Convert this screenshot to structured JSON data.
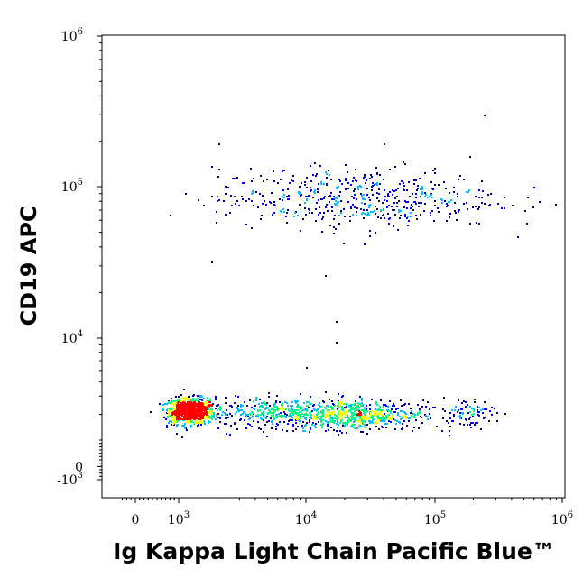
{
  "chart_data": {
    "type": "scatter",
    "title": "",
    "xlabel": "Ig Kappa Light Chain Pacific Blue™",
    "ylabel": "CD19 APC",
    "x_scale": "biexponential",
    "y_scale": "biexponential",
    "xlim": [
      -300,
      1000000
    ],
    "ylim": [
      -1000,
      1000000
    ],
    "grid": false,
    "colormap": [
      "#00008b",
      "#0000ff",
      "#00bfff",
      "#00ff80",
      "#ffff00",
      "#ff0000"
    ],
    "x_ticks": [
      {
        "value": 0,
        "base": "0",
        "exp": ""
      },
      {
        "value": 1000,
        "base": "10",
        "exp": "3"
      },
      {
        "value": 10000,
        "base": "10",
        "exp": "4"
      },
      {
        "value": 100000,
        "base": "10",
        "exp": "5"
      },
      {
        "value": 1000000,
        "base": "10",
        "exp": "6"
      }
    ],
    "y_ticks": [
      {
        "value": -1000,
        "base": "-10",
        "exp": "3"
      },
      {
        "value": 0,
        "base": "0",
        "exp": ""
      },
      {
        "value": 10000,
        "base": "10",
        "exp": "4"
      },
      {
        "value": 100000,
        "base": "10",
        "exp": "5"
      },
      {
        "value": 1000000,
        "base": "10",
        "exp": "6"
      }
    ],
    "populations": [
      {
        "center": [
          1200,
          3200
        ],
        "spread_log": [
          0.1,
          0.045
        ],
        "count": 900
      },
      {
        "center": [
          7000,
          3100
        ],
        "spread_log": [
          0.35,
          0.05
        ],
        "count": 450
      },
      {
        "center": [
          25000,
          3000
        ],
        "spread_log": [
          0.25,
          0.05
        ],
        "count": 550
      },
      {
        "center": [
          170000,
          3100
        ],
        "spread_log": [
          0.12,
          0.05
        ],
        "count": 90
      },
      {
        "center": [
          25000,
          85000
        ],
        "spread_log": [
          0.55,
          0.1
        ],
        "count": 520
      }
    ],
    "outliers": [
      [
        17000,
        13000
      ],
      [
        17000,
        9500
      ],
      [
        14000,
        26000
      ],
      [
        10000,
        6300
      ],
      [
        800,
        65000
      ],
      [
        1800,
        32000
      ],
      [
        240000,
        300000
      ]
    ]
  }
}
